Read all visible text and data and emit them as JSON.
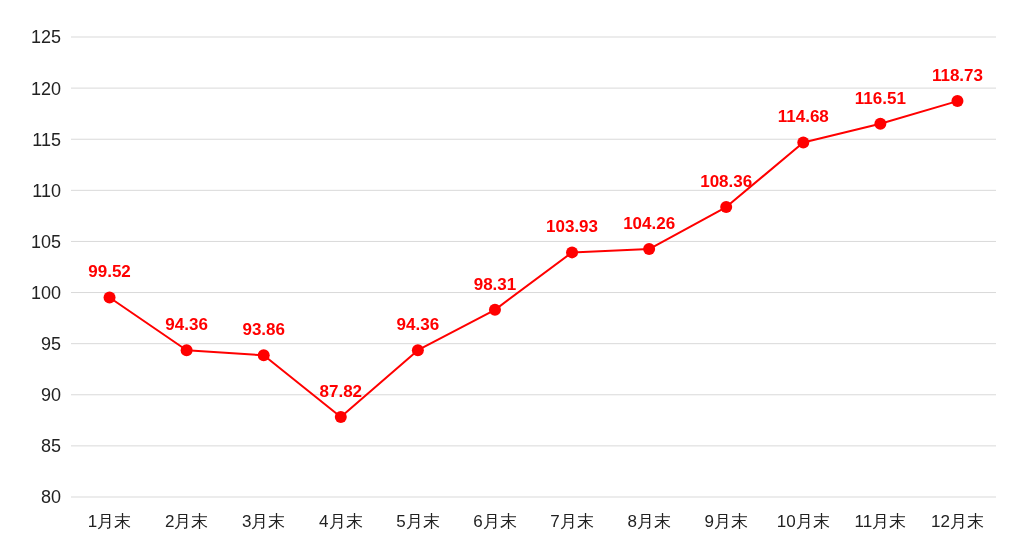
{
  "chart_data": {
    "type": "line",
    "categories": [
      "1月末",
      "2月末",
      "3月末",
      "4月末",
      "5月末",
      "6月末",
      "7月末",
      "8月末",
      "9月末",
      "10月末",
      "11月末",
      "12月末"
    ],
    "series": [
      {
        "color": "#ff0000",
        "values": [
          99.52,
          94.36,
          93.86,
          87.82,
          94.36,
          98.31,
          103.93,
          104.26,
          108.36,
          114.68,
          116.51,
          118.73
        ]
      }
    ],
    "ylim": [
      80,
      125
    ],
    "yticks": [
      80,
      85,
      90,
      95,
      100,
      105,
      110,
      115,
      120,
      125
    ],
    "grid": "y",
    "legend": false,
    "marker": "circle",
    "line_style": "solid",
    "data_labels": true
  }
}
